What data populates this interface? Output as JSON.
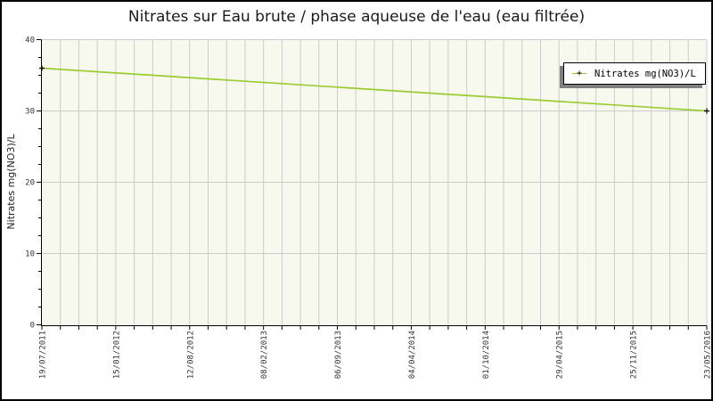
{
  "chart_data": {
    "type": "line",
    "title": "Nitrates sur Eau brute / phase aqueuse de l'eau (eau filtrée)",
    "xlabel": "",
    "ylabel": "Nitrates mg(NO3)/L",
    "ylim": [
      0,
      40
    ],
    "y_major_ticks": [
      0,
      10,
      20,
      30,
      40
    ],
    "y_minor_step": 2.5,
    "x_tick_labels": [
      "19/07/2011",
      "15/01/2012",
      "12/08/2012",
      "08/02/2013",
      "06/09/2013",
      "04/04/2014",
      "01/10/2014",
      "29/04/2015",
      "25/11/2015",
      "23/05/2016"
    ],
    "x_minor_ticks_per_label": 4,
    "grid": "vertical-minor-and-horizontal-major",
    "legend": {
      "position": "top-right",
      "entries": [
        {
          "label": "Nitrates mg(NO3)/L",
          "marker": "plus",
          "color": "#9acd32"
        }
      ]
    },
    "series": [
      {
        "name": "Nitrates mg(NO3)/L",
        "color": "#9acd32",
        "marker": "plus",
        "points": [
          {
            "date": "19/07/2011",
            "value": 36
          },
          {
            "date": "23/05/2016",
            "value": 30
          }
        ]
      }
    ],
    "colors": {
      "line": "#9acd32",
      "marker": "#000000",
      "plot_bg": "#f7f8ee",
      "grid": "#cccccc",
      "axis": "#000000",
      "tick_text": "#333333",
      "legend_shadow": "#7f7f7f"
    }
  }
}
